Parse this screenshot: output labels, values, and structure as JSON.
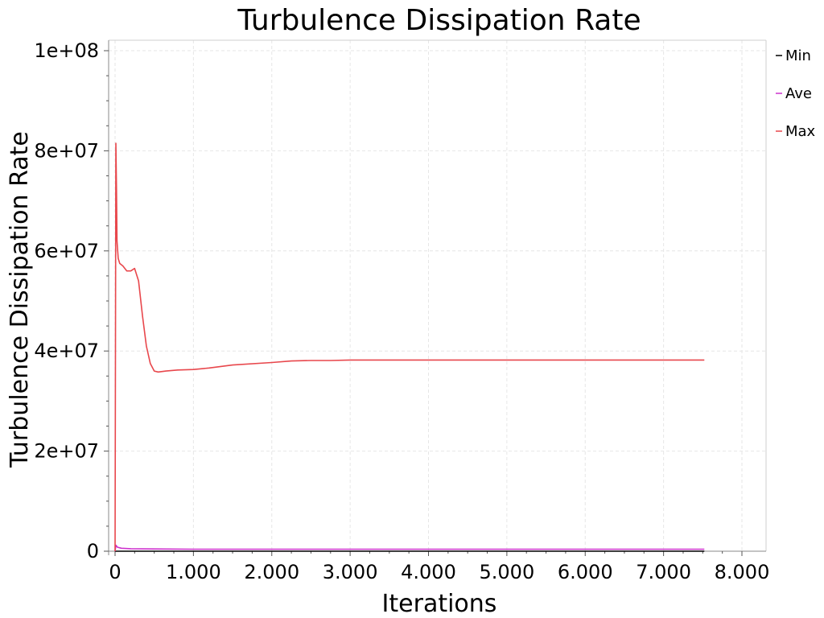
{
  "chart_data": {
    "type": "line",
    "title": "Turbulence Dissipation Rate",
    "xlabel": "Iterations",
    "ylabel": "Turbulence Dissipation Rate",
    "xlim": [
      -100,
      8300
    ],
    "ylim": [
      0,
      100000000
    ],
    "x_ticks": [
      0,
      1000,
      2000,
      3000,
      4000,
      5000,
      6000,
      7000,
      8000
    ],
    "x_tick_labels": [
      "0",
      "1.000",
      "2.000",
      "3.000",
      "4.000",
      "5.000",
      "6.000",
      "7.000",
      "8.000"
    ],
    "y_ticks": [
      0,
      20000000,
      40000000,
      60000000,
      80000000,
      100000000
    ],
    "y_tick_labels": [
      "0",
      "2e+07",
      "4e+07",
      "6e+07",
      "8e+07",
      "1e+08"
    ],
    "grid": true,
    "legend_position": "right",
    "series": [
      {
        "name": "Min",
        "color": "#000000",
        "x": [
          0,
          7520
        ],
        "y": [
          0,
          0
        ]
      },
      {
        "name": "Ave",
        "color": "#cc33cc",
        "x": [
          0,
          10,
          30,
          80,
          200,
          500,
          1000,
          2000,
          3000,
          5000,
          7520
        ],
        "y": [
          0,
          1200000,
          800000,
          600000,
          500000,
          450000,
          400000,
          400000,
          400000,
          400000,
          400000
        ]
      },
      {
        "name": "Max",
        "color": "#e8474c",
        "x": [
          0,
          10,
          18,
          25,
          40,
          60,
          100,
          150,
          200,
          250,
          300,
          350,
          400,
          450,
          500,
          550,
          650,
          800,
          1000,
          1200,
          1500,
          2000,
          2250,
          2500,
          2750,
          3000,
          4000,
          5000,
          6000,
          7000,
          7520
        ],
        "y": [
          0,
          81500000,
          72000000,
          62000000,
          58500000,
          57500000,
          57000000,
          56000000,
          56000000,
          56500000,
          54000000,
          47000000,
          41000000,
          37500000,
          36000000,
          35800000,
          36000000,
          36200000,
          36300000,
          36600000,
          37200000,
          37700000,
          38000000,
          38100000,
          38100000,
          38200000,
          38200000,
          38200000,
          38200000,
          38200000,
          38200000
        ]
      }
    ]
  }
}
